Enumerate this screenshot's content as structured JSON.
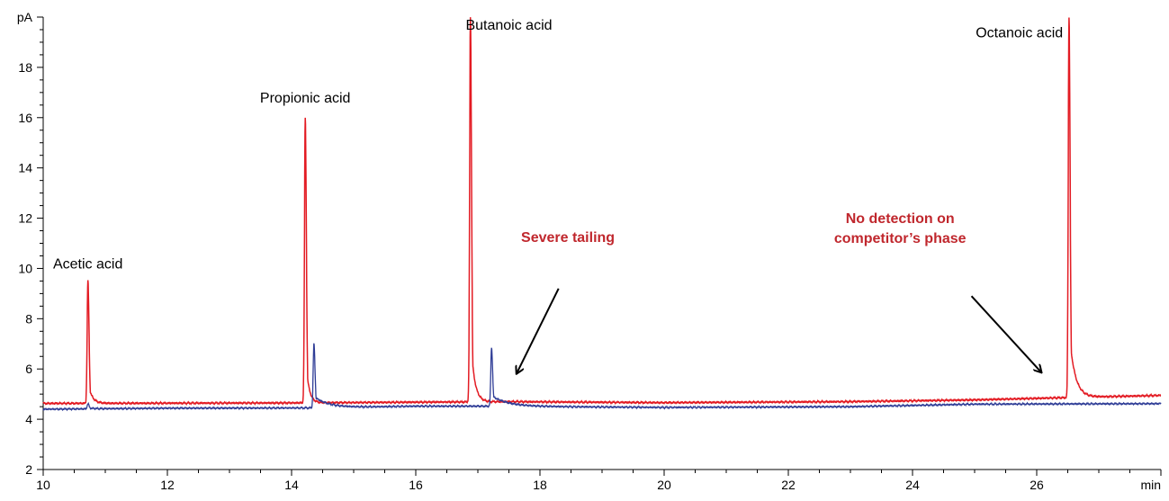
{
  "chart_data": {
    "type": "line",
    "x_unit": "min",
    "y_unit": "pA",
    "xlim": [
      10,
      28
    ],
    "ylim": [
      2,
      20
    ],
    "x_ticks": [
      10,
      12,
      14,
      16,
      18,
      20,
      22,
      24,
      26
    ],
    "y_ticks": [
      2,
      4,
      6,
      8,
      10,
      12,
      14,
      16,
      18
    ],
    "grid": false,
    "series": [
      {
        "color": "#e31b23",
        "baseline": [
          [
            10,
            4.63
          ],
          [
            14,
            4.65
          ],
          [
            17.5,
            4.7
          ],
          [
            20,
            4.66
          ],
          [
            23,
            4.7
          ],
          [
            25,
            4.77
          ],
          [
            26.3,
            4.85
          ],
          [
            28,
            4.95
          ]
        ],
        "peaks": [
          {
            "rt": 10.72,
            "height": 9.5,
            "tailing": 0.06
          },
          {
            "rt": 14.22,
            "height": 16.0,
            "tailing": 0.05
          },
          {
            "rt": 16.88,
            "height": 20.0,
            "tailing": 0.06
          },
          {
            "rt": 26.52,
            "height": 20.0,
            "tailing": 0.09
          }
        ]
      },
      {
        "color": "#2e3c96",
        "baseline": [
          [
            10,
            4.4
          ],
          [
            12,
            4.44
          ],
          [
            14.3,
            4.45
          ],
          [
            16,
            4.52
          ],
          [
            17.2,
            4.52
          ],
          [
            20,
            4.47
          ],
          [
            23,
            4.5
          ],
          [
            25,
            4.6
          ],
          [
            28,
            4.62
          ]
        ],
        "peaks": [
          {
            "rt": 10.72,
            "height": 4.62,
            "tailing": 0.1
          },
          {
            "rt": 14.36,
            "height": 7.0,
            "tailing": 0.22
          },
          {
            "rt": 17.22,
            "height": 6.85,
            "tailing": 0.25
          }
        ]
      }
    ],
    "peak_labels": [
      {
        "text": "Acetic acid",
        "x": 10.72,
        "y": 10.0
      },
      {
        "text": "Propionic acid",
        "x": 14.22,
        "y": 16.6
      },
      {
        "text": "Butanoic acid",
        "x": 17.5,
        "y": 19.5
      },
      {
        "text": "Octanoic acid",
        "x": 25.72,
        "y": 19.2
      }
    ],
    "annotations": [
      {
        "lines": [
          "Severe tailing"
        ],
        "text_x": 18.45,
        "text_y": 11.05,
        "arrow_from": [
          18.3,
          9.2
        ],
        "arrow_to": [
          17.62,
          5.8
        ]
      },
      {
        "lines": [
          "No detection on",
          "competitor’s phase"
        ],
        "text_x": 23.8,
        "text_y": 11.8,
        "arrow_from": [
          24.95,
          8.9
        ],
        "arrow_to": [
          26.08,
          5.85
        ]
      }
    ]
  }
}
